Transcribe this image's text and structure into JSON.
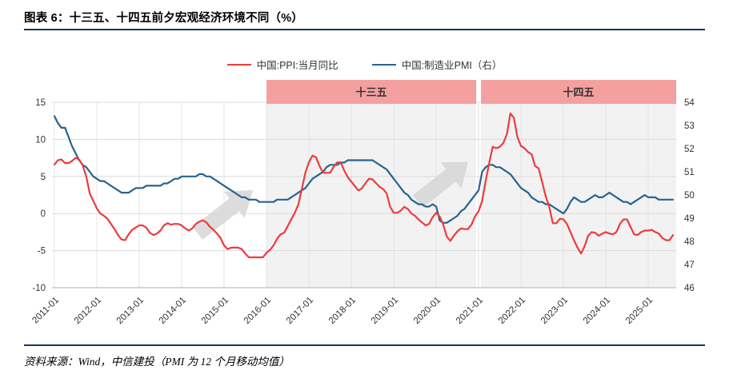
{
  "header": {
    "title": "图表 6：十三五、十四五前夕宏观经济环境不同（%）"
  },
  "footer": {
    "source": "资料来源：Wind，中信建投（PMI 为 12 个月移动均值）"
  },
  "colors": {
    "rule": "#16365C",
    "period_band": "#F5A0A0",
    "period_fill": "#F2F2F2",
    "grid_h": "#DCDCDC",
    "grid_v": "#E4E4E4",
    "axis_line": "#BFBFBF",
    "tick_text": "#333333",
    "arrow": "#D6D6D6"
  },
  "chart_data": {
    "type": "line",
    "title": "十三五、十四五前夕宏观经济环境不同（%）",
    "x_start": "2011-01",
    "x_frequency": "monthly",
    "x_tick_labels": [
      "2011-01",
      "2012-01",
      "2013-01",
      "2014-01",
      "2015-01",
      "2016-01",
      "2017-01",
      "2018-01",
      "2019-01",
      "2020-01",
      "2021-01",
      "2022-01",
      "2023-01",
      "2024-01",
      "2025-01"
    ],
    "left_axis": {
      "min": -10,
      "max": 15,
      "ticks": [
        15,
        10,
        5,
        0,
        -5,
        -10
      ]
    },
    "right_axis": {
      "min": 46,
      "max": 54,
      "ticks": [
        54,
        53,
        52,
        51,
        50,
        49,
        48,
        47,
        46
      ]
    },
    "grid": true,
    "legend_position": "top-center",
    "periods": [
      {
        "label": "十三五",
        "start": "2016-01",
        "end": "2020-12",
        "start_index": 60,
        "end_index": 120
      },
      {
        "label": "十四五",
        "start": "2021-01",
        "end": "2025-08",
        "start_index": 120,
        "end_index": 176
      }
    ],
    "annotations": [
      {
        "type": "arrow",
        "description": "gray up-right trend arrow before 十三五 PPI upswing"
      },
      {
        "type": "arrow",
        "description": "gray up-right trend arrow before 十四五 PPI upswing"
      }
    ],
    "series": [
      {
        "name": "中国:PPI:当月同比",
        "axis": "left",
        "color": "#EE3B3C",
        "values": [
          6.6,
          7.2,
          7.3,
          6.8,
          6.8,
          7.1,
          7.5,
          7.3,
          6.5,
          5.0,
          2.7,
          1.7,
          0.7,
          0.0,
          -0.3,
          -0.7,
          -1.4,
          -2.1,
          -2.9,
          -3.5,
          -3.6,
          -2.8,
          -2.2,
          -1.9,
          -1.6,
          -1.6,
          -1.9,
          -2.6,
          -2.9,
          -2.7,
          -2.3,
          -1.6,
          -1.3,
          -1.5,
          -1.4,
          -1.4,
          -1.6,
          -2.0,
          -2.3,
          -2.0,
          -1.4,
          -1.1,
          -0.9,
          -1.2,
          -1.8,
          -2.2,
          -2.7,
          -3.3,
          -4.3,
          -4.8,
          -4.6,
          -4.6,
          -4.6,
          -4.8,
          -5.4,
          -5.9,
          -5.9,
          -5.9,
          -5.9,
          -5.9,
          -5.3,
          -4.9,
          -4.3,
          -3.4,
          -2.8,
          -2.6,
          -1.7,
          -0.8,
          0.1,
          1.2,
          3.3,
          5.5,
          6.9,
          7.8,
          7.6,
          6.4,
          5.5,
          5.5,
          5.5,
          6.3,
          6.9,
          6.9,
          5.8,
          4.9,
          4.3,
          3.7,
          3.1,
          3.4,
          4.1,
          4.7,
          4.6,
          4.1,
          3.6,
          3.3,
          2.7,
          0.9,
          0.1,
          0.1,
          0.4,
          0.9,
          0.6,
          0.0,
          -0.3,
          -0.8,
          -1.2,
          -1.6,
          -1.4,
          -0.5,
          0.1,
          -0.4,
          -1.5,
          -3.1,
          -3.7,
          -3.0,
          -2.4,
          -2.0,
          -2.1,
          -2.1,
          -1.5,
          -0.4,
          0.3,
          1.7,
          4.4,
          6.8,
          9.0,
          8.8,
          9.0,
          9.5,
          10.7,
          13.5,
          12.9,
          10.3,
          9.1,
          8.8,
          8.3,
          8.0,
          6.4,
          6.1,
          4.2,
          2.3,
          0.9,
          -1.3,
          -1.3,
          -0.7,
          -0.8,
          -1.4,
          -2.5,
          -3.6,
          -4.6,
          -5.4,
          -4.4,
          -3.0,
          -2.5,
          -2.6,
          -3.0,
          -2.7,
          -2.5,
          -2.7,
          -2.8,
          -2.5,
          -1.4,
          -0.8,
          -0.8,
          -1.8,
          -2.8,
          -2.9,
          -2.5,
          -2.3,
          -2.3,
          -2.2,
          -2.5,
          -2.7,
          -3.3,
          -3.6,
          -3.6,
          -2.9
        ]
      },
      {
        "name": "中国:制造业PMI（右）",
        "axis": "right",
        "color": "#27648F",
        "values": [
          53.4,
          53.1,
          52.9,
          52.9,
          52.5,
          52.1,
          51.8,
          51.5,
          51.3,
          51.2,
          51.0,
          50.8,
          50.7,
          50.6,
          50.6,
          50.5,
          50.4,
          50.3,
          50.2,
          50.1,
          50.1,
          50.1,
          50.2,
          50.3,
          50.3,
          50.3,
          50.4,
          50.4,
          50.4,
          50.4,
          50.4,
          50.5,
          50.5,
          50.6,
          50.7,
          50.7,
          50.8,
          50.8,
          50.8,
          50.8,
          50.8,
          50.9,
          50.9,
          50.8,
          50.8,
          50.7,
          50.6,
          50.5,
          50.4,
          50.3,
          50.2,
          50.1,
          50.0,
          49.9,
          49.9,
          49.8,
          49.8,
          49.8,
          49.7,
          49.7,
          49.7,
          49.7,
          49.7,
          49.8,
          49.8,
          49.8,
          49.8,
          49.9,
          50.0,
          50.1,
          50.2,
          50.3,
          50.5,
          50.7,
          50.8,
          50.9,
          51.0,
          51.2,
          51.3,
          51.3,
          51.3,
          51.4,
          51.4,
          51.5,
          51.5,
          51.5,
          51.5,
          51.5,
          51.5,
          51.5,
          51.5,
          51.4,
          51.3,
          51.2,
          51.1,
          50.9,
          50.7,
          50.5,
          50.3,
          50.1,
          50.0,
          49.8,
          49.7,
          49.6,
          49.6,
          49.5,
          49.5,
          49.6,
          49.5,
          48.9,
          48.8,
          48.8,
          48.9,
          49.0,
          49.1,
          49.3,
          49.4,
          49.6,
          49.8,
          50.0,
          50.2,
          51.0,
          51.2,
          51.3,
          51.3,
          51.2,
          51.2,
          51.1,
          51.0,
          50.9,
          50.7,
          50.5,
          50.3,
          50.2,
          50.1,
          49.9,
          49.8,
          49.7,
          49.7,
          49.6,
          49.6,
          49.5,
          49.4,
          49.3,
          49.2,
          49.4,
          49.7,
          49.9,
          49.8,
          49.7,
          49.7,
          49.8,
          49.9,
          50.0,
          49.9,
          49.9,
          50.0,
          50.1,
          50.0,
          49.9,
          49.8,
          49.7,
          49.7,
          49.6,
          49.7,
          49.8,
          49.9,
          50.0,
          49.9,
          49.9,
          49.9,
          49.8,
          49.8,
          49.8,
          49.8,
          49.8
        ]
      }
    ]
  }
}
